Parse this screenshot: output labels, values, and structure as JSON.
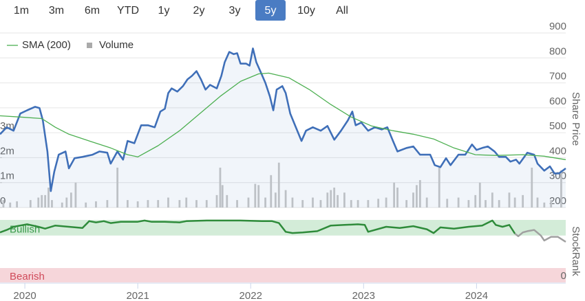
{
  "range_selector": {
    "buttons": [
      "1m",
      "3m",
      "6m",
      "YTD",
      "1y",
      "2y",
      "3y",
      "5y",
      "10y",
      "All"
    ],
    "selected": 7
  },
  "chart_data": [
    {
      "type": "line",
      "y_label": "Share Price",
      "grid": true,
      "legend": "top-left",
      "xlim": [
        2019.78,
        2024.79
      ],
      "ylim": [
        200,
        900
      ],
      "yticks": [
        200,
        300,
        400,
        500,
        600,
        700,
        800,
        900
      ],
      "y2lim": [
        0,
        7000000
      ],
      "y2ticks": [
        0,
        {
          "value": 1000000,
          "label": "1m"
        },
        {
          "value": 2000000,
          "label": "2m"
        },
        {
          "value": 3000000,
          "label": "3m"
        }
      ],
      "series": [
        {
          "color": "#3f6fb8",
          "fill": true,
          "x": [
            2019.78,
            2019.84,
            2019.9,
            2019.96,
            2020.02,
            2020.09,
            2020.13,
            2020.16,
            2020.2,
            2020.23,
            2020.26,
            2020.3,
            2020.36,
            2020.39,
            2020.44,
            2020.51,
            2020.6,
            2020.66,
            2020.73,
            2020.76,
            2020.82,
            2020.87,
            2020.91,
            2020.97,
            2021.03,
            2021.09,
            2021.15,
            2021.2,
            2021.24,
            2021.27,
            2021.3,
            2021.35,
            2021.4,
            2021.44,
            2021.48,
            2021.52,
            2021.56,
            2021.6,
            2021.64,
            2021.7,
            2021.74,
            2021.77,
            2021.81,
            2021.85,
            2021.88,
            2021.91,
            2021.96,
            2021.99,
            2022.02,
            2022.05,
            2022.09,
            2022.13,
            2022.17,
            2022.2,
            2022.23,
            2022.28,
            2022.31,
            2022.35,
            2022.4,
            2022.45,
            2022.49,
            2022.55,
            2022.62,
            2022.68,
            2022.74,
            2022.8,
            2022.86,
            2022.9,
            2022.93,
            2022.98,
            2023.04,
            2023.1,
            2023.16,
            2023.21,
            2023.26,
            2023.3,
            2023.38,
            2023.44,
            2023.5,
            2023.55,
            2023.59,
            2023.63,
            2023.68,
            2023.73,
            2023.77,
            2023.84,
            2023.9,
            2023.96,
            2024.0,
            2024.05,
            2024.1,
            2024.16,
            2024.2,
            2024.26,
            2024.3,
            2024.35,
            2024.38,
            2024.45,
            2024.51,
            2024.54,
            2024.6,
            2024.65,
            2024.69,
            2024.73,
            2024.79
          ],
          "values": [
            494,
            522,
            508,
            577,
            590,
            604,
            599,
            549,
            425,
            266,
            343,
            412,
            425,
            357,
            398,
            403,
            412,
            425,
            420,
            376,
            425,
            392,
            467,
            458,
            530,
            530,
            522,
            585,
            596,
            659,
            678,
            665,
            687,
            714,
            728,
            747,
            714,
            673,
            692,
            678,
            728,
            783,
            824,
            815,
            819,
            777,
            777,
            769,
            838,
            783,
            742,
            700,
            646,
            590,
            673,
            687,
            659,
            577,
            522,
            467,
            508,
            522,
            508,
            527,
            472,
            508,
            549,
            585,
            530,
            541,
            508,
            522,
            513,
            522,
            467,
            425,
            439,
            445,
            412,
            412,
            412,
            370,
            362,
            398,
            370,
            412,
            412,
            453,
            431,
            439,
            445,
            425,
            403,
            403,
            384,
            392,
            376,
            420,
            412,
            376,
            348,
            365,
            337,
            337,
            357
          ]
        },
        {
          "name": "SMA (200)",
          "color": "#4caf50",
          "x": [
            2019.78,
            2019.96,
            2020.15,
            2020.27,
            2020.39,
            2020.57,
            2020.76,
            2020.91,
            2021.0,
            2021.18,
            2021.37,
            2021.55,
            2021.73,
            2021.91,
            2022.07,
            2022.16,
            2022.34,
            2022.52,
            2022.71,
            2022.89,
            2023.07,
            2023.26,
            2023.44,
            2023.62,
            2023.8,
            2023.99,
            2024.17,
            2024.41,
            2024.6,
            2024.79
          ],
          "values": [
            568,
            563,
            557,
            522,
            494,
            467,
            439,
            412,
            403,
            448,
            508,
            577,
            646,
            706,
            736,
            739,
            720,
            673,
            613,
            563,
            527,
            508,
            494,
            475,
            439,
            412,
            409,
            412,
            406,
            392
          ]
        },
        {
          "name": "Volume",
          "type": "bar",
          "axis": "y2",
          "color": "#c8c8c8",
          "x": [
            2019.81,
            2019.87,
            2019.93,
            2020.05,
            2020.12,
            2020.15,
            2020.18,
            2020.21,
            2020.24,
            2020.33,
            2020.37,
            2020.41,
            2020.45,
            2020.54,
            2020.63,
            2020.73,
            2020.82,
            2020.91,
            2021.0,
            2021.09,
            2021.18,
            2021.27,
            2021.37,
            2021.43,
            2021.52,
            2021.61,
            2021.7,
            2021.73,
            2021.75,
            2021.79,
            2021.88,
            2021.98,
            2022.04,
            2022.07,
            2022.13,
            2022.18,
            2022.22,
            2022.25,
            2022.31,
            2022.37,
            2022.46,
            2022.55,
            2022.62,
            2022.68,
            2022.71,
            2022.74,
            2022.77,
            2022.83,
            2022.89,
            2022.95,
            2023.04,
            2023.13,
            2023.2,
            2023.27,
            2023.3,
            2023.38,
            2023.44,
            2023.47,
            2023.5,
            2023.56,
            2023.67,
            2023.74,
            2023.84,
            2023.93,
            2023.99,
            2024.03,
            2024.08,
            2024.14,
            2024.2,
            2024.29,
            2024.34,
            2024.41,
            2024.49,
            2024.54,
            2024.6,
            2024.66,
            2024.75
          ],
          "values": [
            300000,
            200000,
            250000,
            300000,
            400000,
            500000,
            500000,
            800000,
            300000,
            200000,
            400000,
            600000,
            1000000,
            200000,
            250000,
            300000,
            1600000,
            300000,
            250000,
            300000,
            300000,
            400000,
            300000,
            400000,
            300000,
            300000,
            500000,
            1600000,
            900000,
            500000,
            300000,
            400000,
            950000,
            900000,
            400000,
            1300000,
            600000,
            1800000,
            700000,
            400000,
            300000,
            400000,
            300000,
            600000,
            700000,
            800000,
            500000,
            600000,
            300000,
            300000,
            300000,
            350000,
            400000,
            1000000,
            800000,
            300000,
            600000,
            900000,
            1100000,
            400000,
            1600000,
            350000,
            400000,
            300000,
            500000,
            1000000,
            300000,
            600000,
            300000,
            600000,
            400000,
            500000,
            1600000,
            400000,
            200000,
            300000,
            1500000
          ]
        }
      ]
    },
    {
      "type": "line",
      "y_label": "StockRank",
      "xlim": [
        2019.78,
        2024.79
      ],
      "xticks": [
        2020,
        2021,
        2022,
        2023,
        2024
      ],
      "ylim": [
        0,
        100
      ],
      "yticks": [
        0
      ],
      "bands": [
        {
          "label": "Bullish",
          "from": 75,
          "to": 100,
          "color": "#d3ecd8",
          "text_color": "#3a9a4a"
        },
        {
          "label": "Bearish",
          "from": 0,
          "to": 23,
          "color": "#f6d6da",
          "text_color": "#d04a5a"
        }
      ],
      "series": [
        {
          "color": "#2e8b3a",
          "zones": [
            {
              "until": 2024.34,
              "color": "#2e8b3a"
            },
            {
              "color": "#a0a0a0"
            }
          ],
          "x": [
            2019.78,
            2019.84,
            2019.9,
            2020.02,
            2020.12,
            2020.18,
            2020.27,
            2020.39,
            2020.51,
            2020.57,
            2020.63,
            2020.7,
            2020.76,
            2020.85,
            2020.94,
            2021.0,
            2021.06,
            2021.12,
            2021.24,
            2021.37,
            2021.43,
            2021.61,
            2021.91,
            2022.1,
            2022.19,
            2022.25,
            2022.31,
            2022.37,
            2022.46,
            2022.59,
            2022.71,
            2022.83,
            2022.95,
            2023.01,
            2023.04,
            2023.2,
            2023.32,
            2023.44,
            2023.56,
            2023.62,
            2023.68,
            2023.8,
            2023.93,
            2024.05,
            2024.14,
            2024.17,
            2024.23,
            2024.29,
            2024.34,
            2024.37,
            2024.41,
            2024.45,
            2024.51,
            2024.57,
            2024.6,
            2024.66,
            2024.72,
            2024.79
          ],
          "values": [
            80,
            84,
            89,
            93,
            89,
            86,
            91,
            89,
            87,
            98,
            96,
            98,
            95,
            97,
            97,
            97,
            99,
            97,
            97,
            96,
            98,
            99,
            99,
            98,
            98,
            95,
            81,
            79,
            80,
            82,
            91,
            92,
            93,
            92,
            81,
            89,
            87,
            90,
            85,
            79,
            88,
            86,
            89,
            91,
            99,
            92,
            89,
            92,
            78,
            74,
            80,
            82,
            84,
            75,
            67,
            73,
            73,
            65
          ]
        }
      ]
    }
  ]
}
